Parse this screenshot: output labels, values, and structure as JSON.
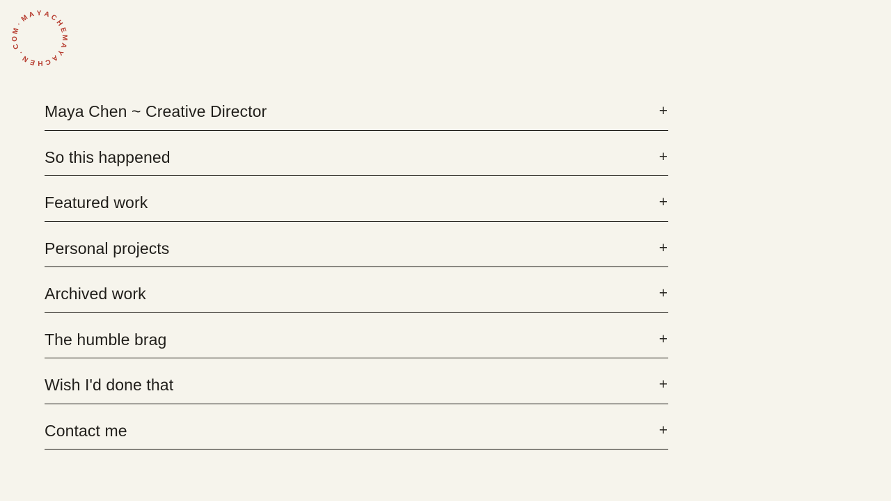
{
  "page": {
    "background_color": "#f6f4ec",
    "text_color": "#201e1a",
    "rule_color": "#1c1a15"
  },
  "logo": {
    "circular_text": "MAYACHEN.COM·MAYACHE",
    "color": "#b63b2e"
  },
  "accordion": {
    "items": [
      {
        "label": "Maya Chen ~ Creative Director",
        "toggle": "+"
      },
      {
        "label": "So this happened",
        "toggle": "+"
      },
      {
        "label": "Featured work",
        "toggle": "+"
      },
      {
        "label": "Personal projects",
        "toggle": "+"
      },
      {
        "label": "Archived work",
        "toggle": "+"
      },
      {
        "label": "The humble brag",
        "toggle": "+"
      },
      {
        "label": "Wish I'd done that",
        "toggle": "+"
      },
      {
        "label": "Contact me",
        "toggle": "+"
      }
    ]
  }
}
